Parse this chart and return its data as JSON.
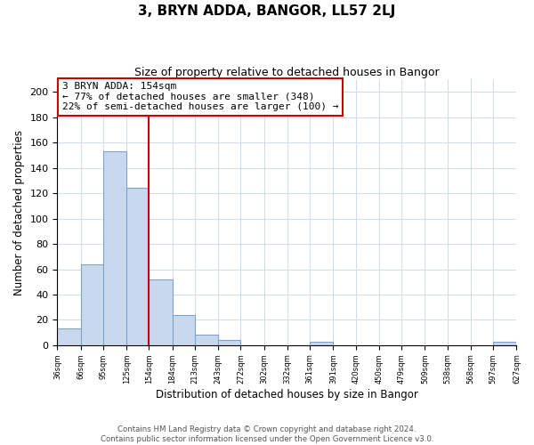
{
  "title": "3, BRYN ADDA, BANGOR, LL57 2LJ",
  "subtitle": "Size of property relative to detached houses in Bangor",
  "xlabel": "Distribution of detached houses by size in Bangor",
  "ylabel": "Number of detached properties",
  "bar_edges": [
    36,
    66,
    95,
    125,
    154,
    184,
    213,
    243,
    272,
    302,
    332,
    361,
    391,
    420,
    450,
    479,
    509,
    538,
    568,
    597,
    627
  ],
  "bar_heights": [
    13,
    64,
    153,
    124,
    52,
    24,
    8,
    4,
    0,
    0,
    0,
    3,
    0,
    0,
    0,
    0,
    0,
    0,
    0,
    3
  ],
  "bar_color": "#c8d9ee",
  "bar_edge_color": "#7ba3cc",
  "vline_x": 154,
  "vline_color": "#cc0000",
  "annotation_line1": "3 BRYN ADDA: 154sqm",
  "annotation_line2": "← 77% of detached houses are smaller (348)",
  "annotation_line3": "22% of semi-detached houses are larger (100) →",
  "ylim": [
    0,
    210
  ],
  "yticks": [
    0,
    20,
    40,
    60,
    80,
    100,
    120,
    140,
    160,
    180,
    200
  ],
  "tick_labels": [
    "36sqm",
    "66sqm",
    "95sqm",
    "125sqm",
    "154sqm",
    "184sqm",
    "213sqm",
    "243sqm",
    "272sqm",
    "302sqm",
    "332sqm",
    "361sqm",
    "391sqm",
    "420sqm",
    "450sqm",
    "479sqm",
    "509sqm",
    "538sqm",
    "568sqm",
    "597sqm",
    "627sqm"
  ],
  "footer_text": "Contains HM Land Registry data © Crown copyright and database right 2024.\nContains public sector information licensed under the Open Government Licence v3.0.",
  "bg_color": "#ffffff",
  "grid_color": "#d0dce8"
}
